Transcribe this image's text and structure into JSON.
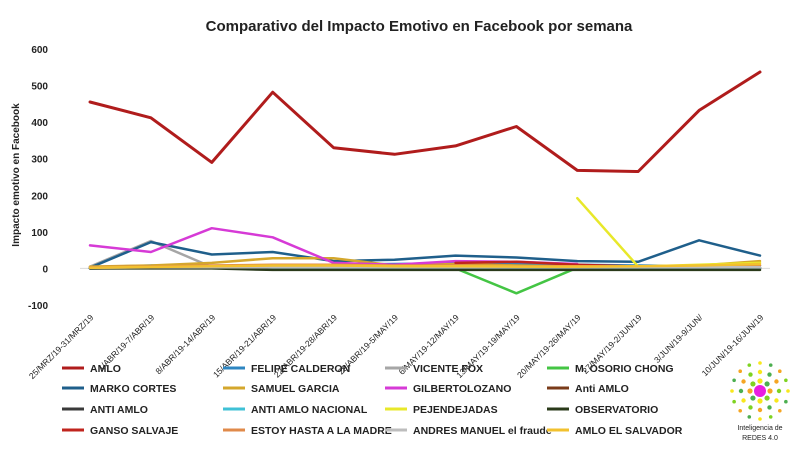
{
  "chart_data": {
    "type": "line",
    "title": "Comparativo del Impacto Emotivo en Facebook por semana",
    "xlabel": "",
    "ylabel": "Impacto emotivo en Facebook",
    "ylim": [
      -100,
      600
    ],
    "yticks": [
      -100,
      0,
      100,
      200,
      300,
      400,
      500,
      600
    ],
    "grid": false,
    "legend_position": "bottom",
    "categories": [
      "25/MRZ/19-31/MRZ/19",
      "1/ABR/19-7/ABR/19",
      "8/ABR/19-14/ABR/19",
      "15/ABR/19-21/ABR/19",
      "22/ABR/19-28/ABR/19",
      "29/ABR/19-5/MAY/19",
      "6/MAY/19-12/MAY/19",
      "13/MAY/19-19/MAY/19",
      "20/MAY/19-26/MAY/19",
      "27/MAY/19-2/JUN/19",
      "3/JUN/19-9/JUN/",
      "10/JUN/19-16/JUN/19"
    ],
    "series": [
      {
        "name": "AMLO",
        "color": "#b01c1c",
        "values": [
          455,
          412,
          290,
          482,
          330,
          312,
          335,
          388,
          268,
          265,
          432,
          537
        ]
      },
      {
        "name": "FELIPE CALDERON",
        "color": "#2e86c1",
        "values": [
          3,
          8,
          5,
          6,
          10,
          12,
          14,
          12,
          10,
          8,
          6,
          8
        ]
      },
      {
        "name": "VICENTE FOX",
        "color": "#a6a6a6",
        "values": [
          5,
          75,
          4,
          3,
          2,
          2,
          2,
          2,
          2,
          2,
          2,
          2
        ]
      },
      {
        "name": "M. OSORIO CHONG",
        "color": "#44c544",
        "values": [
          null,
          null,
          null,
          null,
          null,
          null,
          0,
          -68,
          2,
          null,
          null,
          null
        ]
      },
      {
        "name": "MARKO CORTES",
        "color": "#1f5f8b",
        "values": [
          2,
          72,
          38,
          45,
          20,
          24,
          35,
          30,
          20,
          18,
          77,
          35
        ]
      },
      {
        "name": "SAMUEL GARCIA",
        "color": "#d4a72c",
        "values": [
          5,
          8,
          15,
          28,
          28,
          8,
          12,
          8,
          5,
          5,
          8,
          20
        ]
      },
      {
        "name": "GILBERTOLOZANO",
        "color": "#d63ad6",
        "values": [
          63,
          45,
          110,
          85,
          15,
          10,
          20,
          18,
          12,
          null,
          null,
          null
        ]
      },
      {
        "name": "Anti AMLO",
        "color": "#7a3b1a",
        "values": [
          0,
          1,
          1,
          1,
          0,
          0,
          0,
          0,
          0,
          0,
          0,
          0
        ]
      },
      {
        "name": "ANTI AMLO",
        "color": "#3a3a3a",
        "values": [
          0,
          2,
          5,
          3,
          2,
          3,
          2,
          2,
          2,
          2,
          2,
          2
        ]
      },
      {
        "name": "ANTI AMLO NACIONAL",
        "color": "#3fc1d6",
        "values": [
          0,
          2,
          2,
          2,
          2,
          2,
          2,
          2,
          2,
          2,
          2,
          2
        ]
      },
      {
        "name": "PEJENDEJADAS",
        "color": "#e8e82a",
        "values": [
          null,
          null,
          null,
          null,
          null,
          null,
          null,
          null,
          192,
          5,
          10,
          15
        ]
      },
      {
        "name": "OBSERVATORIO",
        "color": "#2a3a1a",
        "values": [
          0,
          0,
          0,
          -4,
          -4,
          -4,
          -4,
          -4,
          -4,
          -4,
          -4,
          -4
        ]
      },
      {
        "name": "GANSO SALVAJE",
        "color": "#c0241e",
        "values": [
          null,
          null,
          null,
          null,
          null,
          null,
          15,
          18,
          10,
          5,
          null,
          null
        ]
      },
      {
        "name": "ESTOY HASTA A LA MADRE",
        "color": "#e08a4a",
        "values": [
          3,
          5,
          8,
          10,
          10,
          8,
          8,
          6,
          6,
          5,
          5,
          8
        ]
      },
      {
        "name": "ANDRES MANUEL el fraude",
        "color": "#bdbdbd",
        "values": [
          2,
          3,
          3,
          3,
          3,
          3,
          3,
          3,
          3,
          3,
          3,
          3
        ]
      },
      {
        "name": "AMLO EL SALVADOR",
        "color": "#f2c12e",
        "values": [
          2,
          4,
          6,
          8,
          8,
          6,
          6,
          5,
          5,
          6,
          8,
          12
        ]
      }
    ]
  },
  "logo": {
    "line1": "Inteligencia de",
    "line2": "REDES 4.0"
  }
}
